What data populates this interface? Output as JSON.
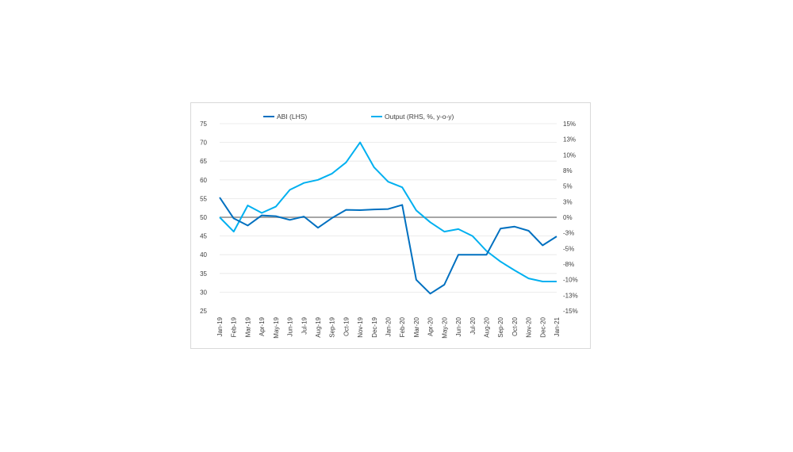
{
  "chart_data": {
    "type": "line",
    "title": "",
    "categories": [
      "Jan-19",
      "Feb-19",
      "Mar-19",
      "Apr-19",
      "May-19",
      "Jun-19",
      "Jul-19",
      "Aug-19",
      "Sep-19",
      "Oct-19",
      "Nov-19",
      "Dec-19",
      "Jan-20",
      "Feb-20",
      "Mar-20",
      "Apr-20",
      "May-20",
      "Jun-20",
      "Jul-20",
      "Aug-20",
      "Sep-20",
      "Oct-20",
      "Nov-20",
      "Dec-20",
      "Jan-21"
    ],
    "left_axis": {
      "label": "ABI (LHS)",
      "ylim": [
        25,
        75
      ],
      "ticks": [
        "75",
        "70",
        "65",
        "60",
        "55",
        "50",
        "45",
        "40",
        "35",
        "30",
        "25"
      ],
      "tick_values": [
        75,
        70,
        65,
        60,
        55,
        50,
        45,
        40,
        35,
        30,
        25
      ]
    },
    "right_axis": {
      "label": "Output (RHS, %, y-o-y)",
      "ylim": [
        -15,
        15
      ],
      "ticks": [
        "15%",
        "13%",
        "10%",
        "8%",
        "5%",
        "3%",
        "0%",
        "-3%",
        "-5%",
        "-8%",
        "-10%",
        "-13%",
        "-15%"
      ],
      "tick_values": [
        15,
        12.5,
        10,
        7.5,
        5,
        2.5,
        0,
        -2.5,
        -5,
        -7.5,
        -10,
        -12.5,
        -15
      ]
    },
    "reference_line": {
      "axis": "left",
      "value": 50,
      "color": "#a6a6a6"
    },
    "series": [
      {
        "name": "ABI (LHS)",
        "axis": "left",
        "color": "#0070c0",
        "values": [
          55.3,
          49.7,
          47.8,
          50.5,
          50.3,
          49.3,
          50.2,
          47.2,
          49.8,
          52.0,
          51.9,
          52.1,
          52.2,
          53.3,
          33.3,
          29.6,
          32.0,
          40.0,
          40.0,
          40.0,
          47.0,
          47.5,
          46.4,
          42.5,
          44.9
        ]
      },
      {
        "name": "Output (RHS, %, y-o-y)",
        "axis": "right",
        "color": "#00b0f0",
        "values": [
          0.0,
          -2.3,
          1.9,
          0.7,
          1.7,
          4.4,
          5.5,
          6.0,
          7.0,
          8.8,
          12.0,
          8.0,
          5.7,
          4.8,
          1.1,
          -0.8,
          -2.3,
          -1.9,
          -3.0,
          -5.4,
          -7.1,
          -8.5,
          -9.8,
          -10.3,
          -10.3
        ]
      }
    ],
    "legend_position": "top",
    "grid": "horizontal"
  }
}
